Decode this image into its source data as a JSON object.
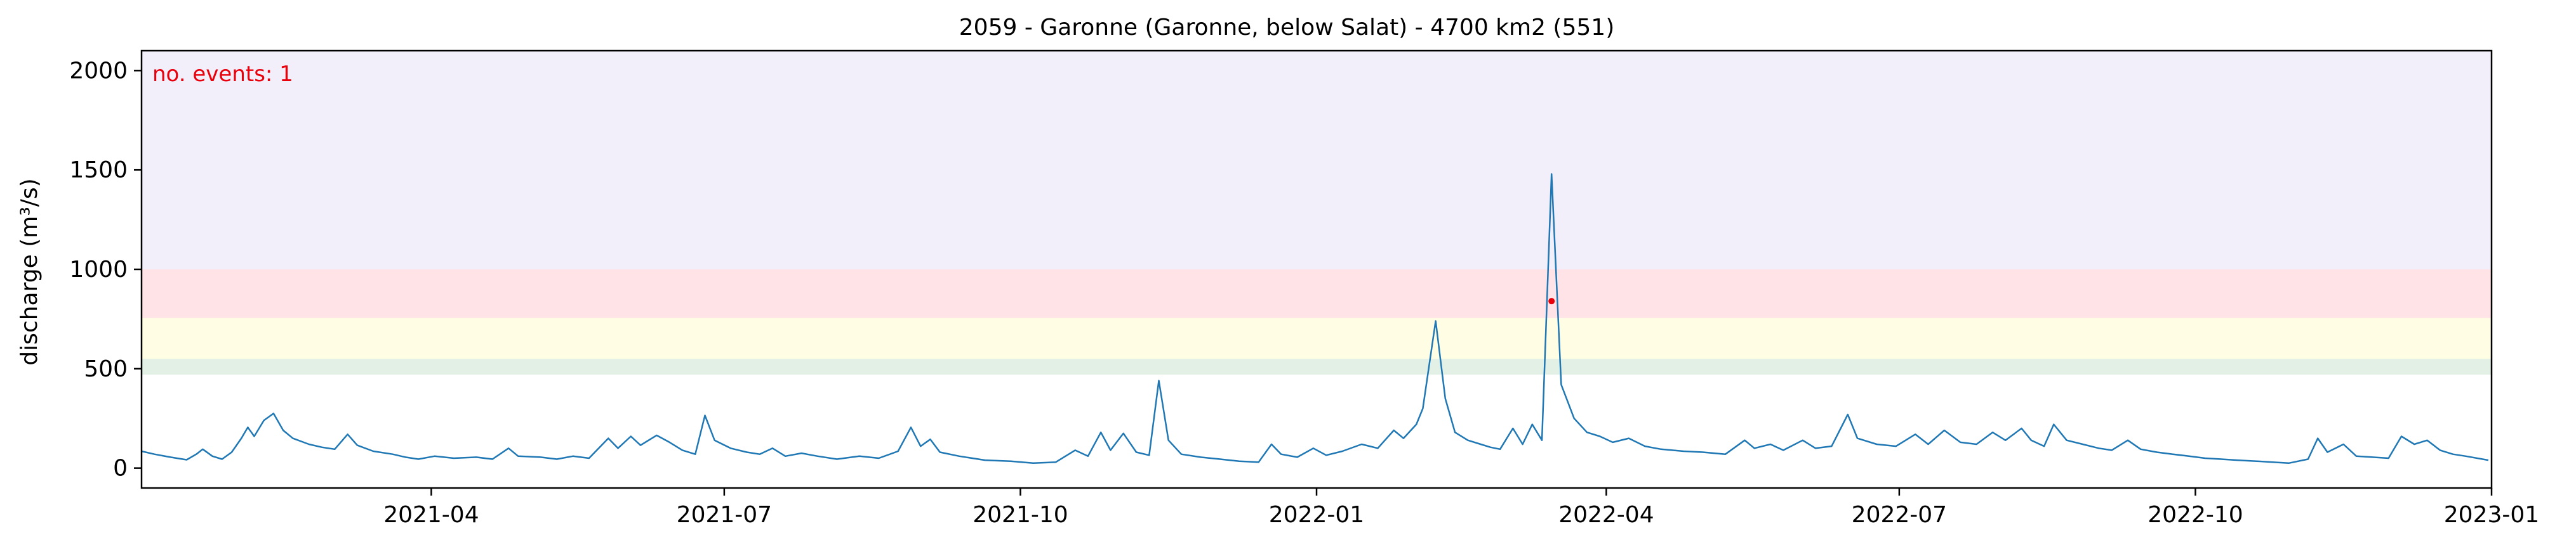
{
  "chart_data": {
    "type": "line",
    "title": "2059 - Garonne (Garonne, below Salat) - 4700 km2 (551)",
    "xlabel": "",
    "ylabel": "discharge (m³/s)",
    "xlim": [
      "2021-01-01",
      "2023-01-01"
    ],
    "ylim": [
      -100,
      2100
    ],
    "grid": false,
    "x_ticks": [
      "2021-04",
      "2021-07",
      "2021-10",
      "2022-01",
      "2022-04",
      "2022-07",
      "2022-10",
      "2023-01"
    ],
    "y_ticks": [
      0,
      500,
      1000,
      1500,
      2000
    ],
    "annotation": {
      "text": "no. events: 1",
      "color": "#e8000b"
    },
    "threshold_bands": [
      {
        "from": 470,
        "to": 550,
        "color": "#e3f0e6"
      },
      {
        "from": 550,
        "to": 755,
        "color": "#fffde3"
      },
      {
        "from": 755,
        "to": 1000,
        "color": "#ffe3e6"
      },
      {
        "from": 1000,
        "to": 2100,
        "color": "#f2eefa"
      }
    ],
    "series": [
      {
        "color": "#1f77b4",
        "points": [
          [
            "2021-01-01",
            85
          ],
          [
            "2021-01-05",
            70
          ],
          [
            "2021-01-10",
            55
          ],
          [
            "2021-01-15",
            42
          ],
          [
            "2021-01-18",
            70
          ],
          [
            "2021-01-20",
            95
          ],
          [
            "2021-01-23",
            60
          ],
          [
            "2021-01-26",
            45
          ],
          [
            "2021-01-29",
            80
          ],
          [
            "2021-02-01",
            150
          ],
          [
            "2021-02-03",
            205
          ],
          [
            "2021-02-05",
            160
          ],
          [
            "2021-02-08",
            240
          ],
          [
            "2021-02-11",
            275
          ],
          [
            "2021-02-14",
            190
          ],
          [
            "2021-02-17",
            150
          ],
          [
            "2021-02-22",
            120
          ],
          [
            "2021-02-26",
            105
          ],
          [
            "2021-03-02",
            95
          ],
          [
            "2021-03-06",
            170
          ],
          [
            "2021-03-09",
            115
          ],
          [
            "2021-03-14",
            85
          ],
          [
            "2021-03-20",
            70
          ],
          [
            "2021-03-24",
            55
          ],
          [
            "2021-03-28",
            45
          ],
          [
            "2021-04-02",
            60
          ],
          [
            "2021-04-08",
            50
          ],
          [
            "2021-04-15",
            55
          ],
          [
            "2021-04-20",
            45
          ],
          [
            "2021-04-25",
            100
          ],
          [
            "2021-04-28",
            60
          ],
          [
            "2021-05-05",
            55
          ],
          [
            "2021-05-10",
            45
          ],
          [
            "2021-05-15",
            60
          ],
          [
            "2021-05-20",
            50
          ],
          [
            "2021-05-26",
            150
          ],
          [
            "2021-05-29",
            100
          ],
          [
            "2021-06-02",
            160
          ],
          [
            "2021-06-05",
            115
          ],
          [
            "2021-06-10",
            165
          ],
          [
            "2021-06-14",
            130
          ],
          [
            "2021-06-18",
            90
          ],
          [
            "2021-06-22",
            70
          ],
          [
            "2021-06-25",
            265
          ],
          [
            "2021-06-28",
            140
          ],
          [
            "2021-07-03",
            100
          ],
          [
            "2021-07-08",
            80
          ],
          [
            "2021-07-12",
            70
          ],
          [
            "2021-07-16",
            100
          ],
          [
            "2021-07-20",
            60
          ],
          [
            "2021-07-25",
            75
          ],
          [
            "2021-07-30",
            60
          ],
          [
            "2021-08-05",
            45
          ],
          [
            "2021-08-12",
            60
          ],
          [
            "2021-08-18",
            50
          ],
          [
            "2021-08-24",
            85
          ],
          [
            "2021-08-28",
            205
          ],
          [
            "2021-08-31",
            110
          ],
          [
            "2021-09-03",
            145
          ],
          [
            "2021-09-06",
            80
          ],
          [
            "2021-09-12",
            60
          ],
          [
            "2021-09-20",
            40
          ],
          [
            "2021-09-28",
            35
          ],
          [
            "2021-10-05",
            25
          ],
          [
            "2021-10-12",
            30
          ],
          [
            "2021-10-18",
            90
          ],
          [
            "2021-10-22",
            60
          ],
          [
            "2021-10-26",
            180
          ],
          [
            "2021-10-29",
            90
          ],
          [
            "2021-11-02",
            175
          ],
          [
            "2021-11-06",
            80
          ],
          [
            "2021-11-10",
            65
          ],
          [
            "2021-11-13",
            440
          ],
          [
            "2021-11-16",
            140
          ],
          [
            "2021-11-20",
            70
          ],
          [
            "2021-11-26",
            55
          ],
          [
            "2021-12-02",
            45
          ],
          [
            "2021-12-08",
            35
          ],
          [
            "2021-12-14",
            30
          ],
          [
            "2021-12-18",
            120
          ],
          [
            "2021-12-21",
            70
          ],
          [
            "2021-12-26",
            55
          ],
          [
            "2021-12-31",
            100
          ],
          [
            "2022-01-04",
            65
          ],
          [
            "2022-01-09",
            85
          ],
          [
            "2022-01-15",
            120
          ],
          [
            "2022-01-20",
            100
          ],
          [
            "2022-01-25",
            190
          ],
          [
            "2022-01-28",
            150
          ],
          [
            "2022-02-01",
            220
          ],
          [
            "2022-02-03",
            300
          ],
          [
            "2022-02-07",
            740
          ],
          [
            "2022-02-10",
            350
          ],
          [
            "2022-02-13",
            180
          ],
          [
            "2022-02-17",
            140
          ],
          [
            "2022-02-21",
            120
          ],
          [
            "2022-02-24",
            105
          ],
          [
            "2022-02-27",
            95
          ],
          [
            "2022-03-03",
            200
          ],
          [
            "2022-03-06",
            120
          ],
          [
            "2022-03-09",
            220
          ],
          [
            "2022-03-12",
            140
          ],
          [
            "2022-03-15",
            1480
          ],
          [
            "2022-03-18",
            420
          ],
          [
            "2022-03-22",
            250
          ],
          [
            "2022-03-26",
            180
          ],
          [
            "2022-03-30",
            160
          ],
          [
            "2022-04-03",
            130
          ],
          [
            "2022-04-08",
            150
          ],
          [
            "2022-04-13",
            110
          ],
          [
            "2022-04-18",
            95
          ],
          [
            "2022-04-25",
            85
          ],
          [
            "2022-05-01",
            80
          ],
          [
            "2022-05-08",
            70
          ],
          [
            "2022-05-14",
            140
          ],
          [
            "2022-05-17",
            100
          ],
          [
            "2022-05-22",
            120
          ],
          [
            "2022-05-26",
            90
          ],
          [
            "2022-06-01",
            140
          ],
          [
            "2022-06-05",
            100
          ],
          [
            "2022-06-10",
            110
          ],
          [
            "2022-06-15",
            270
          ],
          [
            "2022-06-18",
            150
          ],
          [
            "2022-06-24",
            120
          ],
          [
            "2022-06-30",
            110
          ],
          [
            "2022-07-06",
            170
          ],
          [
            "2022-07-10",
            120
          ],
          [
            "2022-07-15",
            190
          ],
          [
            "2022-07-20",
            130
          ],
          [
            "2022-07-25",
            120
          ],
          [
            "2022-07-30",
            180
          ],
          [
            "2022-08-03",
            140
          ],
          [
            "2022-08-08",
            200
          ],
          [
            "2022-08-11",
            140
          ],
          [
            "2022-08-15",
            110
          ],
          [
            "2022-08-18",
            220
          ],
          [
            "2022-08-22",
            140
          ],
          [
            "2022-08-27",
            120
          ],
          [
            "2022-09-01",
            100
          ],
          [
            "2022-09-05",
            90
          ],
          [
            "2022-09-10",
            140
          ],
          [
            "2022-09-14",
            95
          ],
          [
            "2022-09-19",
            80
          ],
          [
            "2022-09-24",
            70
          ],
          [
            "2022-09-29",
            60
          ],
          [
            "2022-10-04",
            50
          ],
          [
            "2022-10-09",
            45
          ],
          [
            "2022-10-14",
            40
          ],
          [
            "2022-10-20",
            35
          ],
          [
            "2022-10-25",
            30
          ],
          [
            "2022-10-30",
            25
          ],
          [
            "2022-11-05",
            45
          ],
          [
            "2022-11-08",
            150
          ],
          [
            "2022-11-11",
            80
          ],
          [
            "2022-11-16",
            120
          ],
          [
            "2022-11-20",
            60
          ],
          [
            "2022-11-25",
            55
          ],
          [
            "2022-11-30",
            50
          ],
          [
            "2022-12-04",
            160
          ],
          [
            "2022-12-08",
            120
          ],
          [
            "2022-12-12",
            140
          ],
          [
            "2022-12-16",
            90
          ],
          [
            "2022-12-20",
            70
          ],
          [
            "2022-12-24",
            60
          ],
          [
            "2022-12-31",
            40
          ]
        ]
      }
    ],
    "event_marker": {
      "x": "2022-03-15",
      "y": 840,
      "color": "#e8000b"
    }
  }
}
